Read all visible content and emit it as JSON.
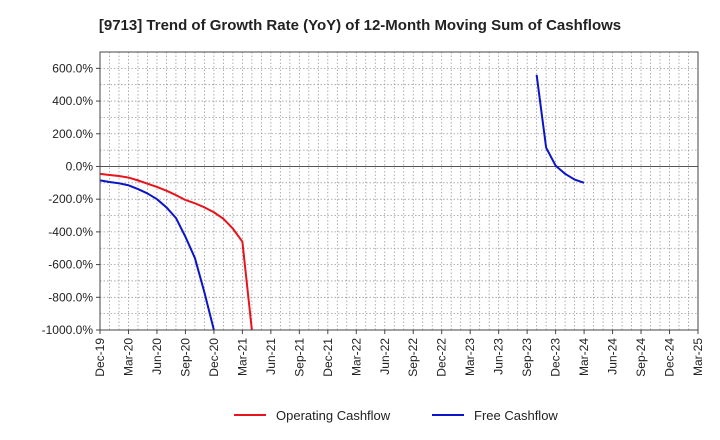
{
  "chart_data": {
    "type": "line",
    "title": "[9713]  Trend of Growth Rate (YoY) of 12-Month Moving Sum of Cashflows",
    "xlabel": "",
    "ylabel": "",
    "ylim": [
      -1000,
      700
    ],
    "xlim": [
      "2019-12",
      "2025-03"
    ],
    "y_ticks": [
      600,
      400,
      200,
      0,
      -200,
      -400,
      -600,
      -800,
      -1000
    ],
    "y_tick_labels": [
      "600.0%",
      "400.0%",
      "200.0%",
      "0.0%",
      "-200.0%",
      "-400.0%",
      "-600.0%",
      "-800.0%",
      "-1000.0%"
    ],
    "x_ticks": [
      "2019-12",
      "2020-03",
      "2020-06",
      "2020-09",
      "2020-12",
      "2021-03",
      "2021-06",
      "2021-09",
      "2021-12",
      "2022-03",
      "2022-06",
      "2022-09",
      "2022-12",
      "2023-03",
      "2023-06",
      "2023-09",
      "2023-12",
      "2024-03",
      "2024-06",
      "2024-09",
      "2024-12",
      "2025-03"
    ],
    "x_tick_labels": [
      "Dec-19",
      "Mar-20",
      "Jun-20",
      "Sep-20",
      "Dec-20",
      "Mar-21",
      "Jun-21",
      "Sep-21",
      "Dec-21",
      "Mar-22",
      "Jun-22",
      "Sep-22",
      "Dec-22",
      "Mar-23",
      "Jun-23",
      "Sep-23",
      "Dec-23",
      "Mar-24",
      "Jun-24",
      "Sep-24",
      "Dec-24",
      "Mar-25"
    ],
    "grid": true,
    "legend_position": "bottom-center",
    "series": [
      {
        "name": "Operating Cashflow",
        "color": "#e8141c",
        "points": [
          {
            "x": "2019-12",
            "y": -45
          },
          {
            "x": "2020-01",
            "y": -52
          },
          {
            "x": "2020-02",
            "y": -58
          },
          {
            "x": "2020-03",
            "y": -68
          },
          {
            "x": "2020-04",
            "y": -85
          },
          {
            "x": "2020-05",
            "y": -105
          },
          {
            "x": "2020-06",
            "y": -125
          },
          {
            "x": "2020-07",
            "y": -148
          },
          {
            "x": "2020-08",
            "y": -175
          },
          {
            "x": "2020-09",
            "y": -205
          },
          {
            "x": "2020-10",
            "y": -225
          },
          {
            "x": "2020-11",
            "y": -250
          },
          {
            "x": "2020-12",
            "y": -280
          },
          {
            "x": "2021-01",
            "y": -320
          },
          {
            "x": "2021-02",
            "y": -380
          },
          {
            "x": "2021-03",
            "y": -460
          },
          {
            "x": "2021-04",
            "y": -1000
          }
        ]
      },
      {
        "name": "Free Cashflow",
        "color": "#0a14c8",
        "points": [
          {
            "x": "2019-12",
            "y": -85
          },
          {
            "x": "2020-01",
            "y": -95
          },
          {
            "x": "2020-02",
            "y": -103
          },
          {
            "x": "2020-03",
            "y": -115
          },
          {
            "x": "2020-04",
            "y": -138
          },
          {
            "x": "2020-05",
            "y": -165
          },
          {
            "x": "2020-06",
            "y": -200
          },
          {
            "x": "2020-07",
            "y": -250
          },
          {
            "x": "2020-08",
            "y": -315
          },
          {
            "x": "2020-09",
            "y": -430
          },
          {
            "x": "2020-10",
            "y": -560
          },
          {
            "x": "2020-11",
            "y": -770
          },
          {
            "x": "2020-12",
            "y": -1000
          }
        ],
        "points_2": [
          {
            "x": "2023-10",
            "y": 560
          },
          {
            "x": "2023-11",
            "y": 115
          },
          {
            "x": "2023-12",
            "y": 5
          },
          {
            "x": "2024-01",
            "y": -45
          },
          {
            "x": "2024-02",
            "y": -80
          },
          {
            "x": "2024-03",
            "y": -100
          }
        ]
      }
    ]
  }
}
